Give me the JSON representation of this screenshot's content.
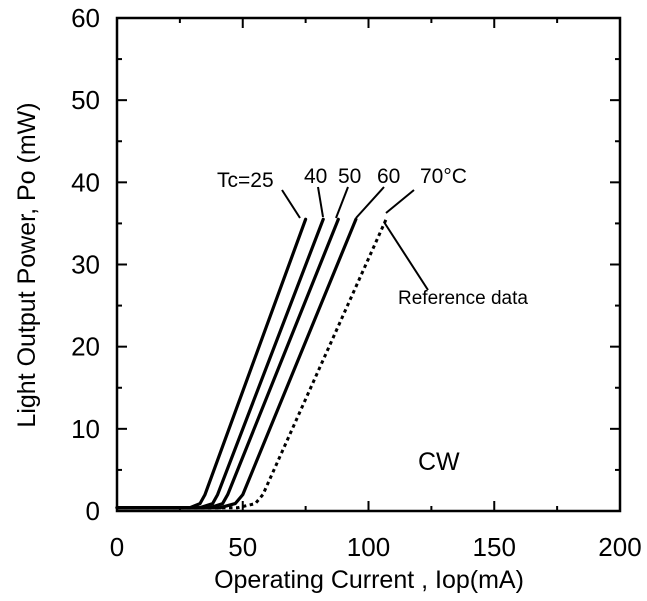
{
  "chart_data": {
    "type": "line",
    "xlabel": "Operating Current , Iop(mA)",
    "ylabel": "Light Output Power,  Po (mW)",
    "xlim": [
      0,
      200
    ],
    "ylim": [
      0,
      60
    ],
    "xticks": [
      "0",
      "50",
      "100",
      "150",
      "200"
    ],
    "yticks": [
      "0",
      "10",
      "20",
      "30",
      "40",
      "50",
      "60"
    ],
    "grid": false,
    "series": [
      {
        "name": "Tc=25",
        "style": "solid",
        "x": [
          0,
          29,
          33,
          35,
          75
        ],
        "y": [
          0.4,
          0.4,
          0.9,
          2,
          35.5
        ]
      },
      {
        "name": "40",
        "style": "solid",
        "x": [
          0,
          33,
          38,
          40,
          82
        ],
        "y": [
          0.4,
          0.4,
          0.9,
          2,
          35.5
        ]
      },
      {
        "name": "50",
        "style": "solid",
        "x": [
          0,
          37,
          42,
          44,
          88
        ],
        "y": [
          0.4,
          0.4,
          0.9,
          2,
          35.5
        ]
      },
      {
        "name": "60",
        "style": "solid",
        "x": [
          0,
          41,
          47,
          50,
          95
        ],
        "y": [
          0.4,
          0.4,
          0.9,
          2,
          35.5
        ]
      },
      {
        "name": "70°C",
        "style": "dotted",
        "x": [
          0,
          48,
          55,
          58,
          107
        ],
        "y": [
          0.4,
          0.4,
          0.9,
          2,
          35.5
        ]
      }
    ],
    "annotations": {
      "temperature_prefix": "Tc=25",
      "t40": "40",
      "t50": "50",
      "t60": "60",
      "t70": "70°C",
      "reference": "Reference data",
      "mode": "CW"
    }
  }
}
